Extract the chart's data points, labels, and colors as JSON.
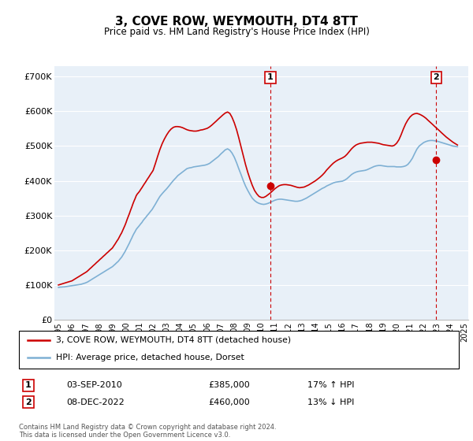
{
  "title": "3, COVE ROW, WEYMOUTH, DT4 8TT",
  "subtitle": "Price paid vs. HM Land Registry's House Price Index (HPI)",
  "ylim": [
    0,
    730000
  ],
  "yticks": [
    0,
    100000,
    200000,
    300000,
    400000,
    500000,
    600000,
    700000
  ],
  "ytick_labels": [
    "£0",
    "£100K",
    "£200K",
    "£300K",
    "£400K",
    "£500K",
    "£600K",
    "£700K"
  ],
  "background_color": "#e8f0f8",
  "grid_color": "#ffffff",
  "hpi_color": "#7eb0d4",
  "price_color": "#cc0000",
  "sale1_x": 2010.67,
  "sale1_y": 385000,
  "sale1_label": "1",
  "sale2_x": 2022.92,
  "sale2_y": 460000,
  "sale2_label": "2",
  "legend_line1": "3, COVE ROW, WEYMOUTH, DT4 8TT (detached house)",
  "legend_line2": "HPI: Average price, detached house, Dorset",
  "annotation1_date": "03-SEP-2010",
  "annotation1_price": "£385,000",
  "annotation1_hpi": "17% ↑ HPI",
  "annotation2_date": "08-DEC-2022",
  "annotation2_price": "£460,000",
  "annotation2_hpi": "13% ↓ HPI",
  "footer": "Contains HM Land Registry data © Crown copyright and database right 2024.\nThis data is licensed under the Open Government Licence v3.0.",
  "hpi_data_x": [
    1995.0,
    1995.08,
    1995.17,
    1995.25,
    1995.33,
    1995.42,
    1995.5,
    1995.58,
    1995.67,
    1995.75,
    1995.83,
    1995.92,
    1996.0,
    1996.08,
    1996.17,
    1996.25,
    1996.33,
    1996.42,
    1996.5,
    1996.58,
    1996.67,
    1996.75,
    1996.83,
    1996.92,
    1997.0,
    1997.08,
    1997.17,
    1997.25,
    1997.33,
    1997.42,
    1997.5,
    1997.58,
    1997.67,
    1997.75,
    1997.83,
    1997.92,
    1998.0,
    1998.08,
    1998.17,
    1998.25,
    1998.33,
    1998.42,
    1998.5,
    1998.58,
    1998.67,
    1998.75,
    1998.83,
    1998.92,
    1999.0,
    1999.08,
    1999.17,
    1999.25,
    1999.33,
    1999.42,
    1999.5,
    1999.58,
    1999.67,
    1999.75,
    1999.83,
    1999.92,
    2000.0,
    2000.08,
    2000.17,
    2000.25,
    2000.33,
    2000.42,
    2000.5,
    2000.58,
    2000.67,
    2000.75,
    2000.83,
    2000.92,
    2001.0,
    2001.08,
    2001.17,
    2001.25,
    2001.33,
    2001.42,
    2001.5,
    2001.58,
    2001.67,
    2001.75,
    2001.83,
    2001.92,
    2002.0,
    2002.17,
    2002.33,
    2002.5,
    2002.67,
    2002.83,
    2003.0,
    2003.17,
    2003.33,
    2003.5,
    2003.67,
    2003.83,
    2004.0,
    2004.17,
    2004.33,
    2004.5,
    2004.67,
    2004.83,
    2005.0,
    2005.17,
    2005.33,
    2005.5,
    2005.67,
    2005.83,
    2006.0,
    2006.17,
    2006.33,
    2006.5,
    2006.67,
    2006.83,
    2007.0,
    2007.17,
    2007.33,
    2007.5,
    2007.67,
    2007.83,
    2008.0,
    2008.17,
    2008.33,
    2008.5,
    2008.67,
    2008.83,
    2009.0,
    2009.17,
    2009.33,
    2009.5,
    2009.67,
    2009.83,
    2010.0,
    2010.17,
    2010.33,
    2010.5,
    2010.67,
    2010.83,
    2011.0,
    2011.17,
    2011.33,
    2011.5,
    2011.67,
    2011.83,
    2012.0,
    2012.17,
    2012.33,
    2012.5,
    2012.67,
    2012.83,
    2013.0,
    2013.17,
    2013.33,
    2013.5,
    2013.67,
    2013.83,
    2014.0,
    2014.17,
    2014.33,
    2014.5,
    2014.67,
    2014.83,
    2015.0,
    2015.17,
    2015.33,
    2015.5,
    2015.67,
    2015.83,
    2016.0,
    2016.17,
    2016.33,
    2016.5,
    2016.67,
    2016.83,
    2017.0,
    2017.17,
    2017.33,
    2017.5,
    2017.67,
    2017.83,
    2018.0,
    2018.17,
    2018.33,
    2018.5,
    2018.67,
    2018.83,
    2019.0,
    2019.17,
    2019.33,
    2019.5,
    2019.67,
    2019.83,
    2020.0,
    2020.17,
    2020.33,
    2020.5,
    2020.67,
    2020.83,
    2021.0,
    2021.17,
    2021.33,
    2021.5,
    2021.67,
    2021.83,
    2022.0,
    2022.17,
    2022.33,
    2022.5,
    2022.67,
    2022.83,
    2023.0,
    2023.17,
    2023.33,
    2023.5,
    2023.67,
    2023.83,
    2024.0,
    2024.17,
    2024.33,
    2024.5
  ],
  "hpi_data_y": [
    93000,
    93500,
    94000,
    94000,
    94500,
    94500,
    95000,
    95500,
    96000,
    96500,
    97000,
    97500,
    98000,
    98500,
    99000,
    99500,
    100000,
    100500,
    101000,
    101500,
    102000,
    103000,
    104000,
    105000,
    106000,
    107500,
    109000,
    111000,
    113000,
    115000,
    117000,
    119000,
    121000,
    123000,
    125000,
    127000,
    129000,
    131000,
    133000,
    135000,
    137000,
    139000,
    141000,
    143000,
    145000,
    147000,
    149000,
    151000,
    153000,
    156000,
    159000,
    162000,
    165000,
    168000,
    172000,
    176000,
    180000,
    185000,
    190000,
    196000,
    202000,
    208000,
    215000,
    221000,
    228000,
    235000,
    242000,
    248000,
    254000,
    260000,
    264000,
    268000,
    272000,
    276000,
    280000,
    285000,
    289000,
    293000,
    297000,
    301000,
    305000,
    309000,
    313000,
    317000,
    322000,
    333000,
    344000,
    355000,
    363000,
    370000,
    377000,
    385000,
    393000,
    401000,
    408000,
    415000,
    420000,
    425000,
    430000,
    435000,
    437000,
    438000,
    440000,
    441000,
    442000,
    443000,
    444000,
    445000,
    447000,
    450000,
    455000,
    460000,
    465000,
    470000,
    477000,
    483000,
    489000,
    492000,
    488000,
    480000,
    468000,
    452000,
    435000,
    418000,
    400000,
    385000,
    372000,
    360000,
    350000,
    343000,
    338000,
    335000,
    333000,
    332000,
    333000,
    335000,
    338000,
    341000,
    344000,
    346000,
    347000,
    347000,
    346000,
    345000,
    344000,
    343000,
    342000,
    341000,
    341000,
    342000,
    344000,
    347000,
    350000,
    354000,
    358000,
    362000,
    366000,
    370000,
    374000,
    378000,
    381000,
    385000,
    388000,
    391000,
    394000,
    396000,
    397000,
    398000,
    399000,
    402000,
    406000,
    412000,
    418000,
    422000,
    425000,
    427000,
    428000,
    429000,
    430000,
    432000,
    435000,
    438000,
    441000,
    443000,
    444000,
    444000,
    443000,
    442000,
    441000,
    441000,
    441000,
    441000,
    440000,
    440000,
    440000,
    441000,
    443000,
    447000,
    455000,
    465000,
    478000,
    491000,
    500000,
    505000,
    510000,
    513000,
    515000,
    516000,
    516000,
    515000,
    514000,
    512000,
    510000,
    508000,
    506000,
    504000,
    502000,
    500000,
    499000,
    498000
  ],
  "price_data_x": [
    1995.0,
    1995.08,
    1995.17,
    1995.25,
    1995.33,
    1995.42,
    1995.5,
    1995.58,
    1995.67,
    1995.75,
    1995.83,
    1995.92,
    1996.0,
    1996.08,
    1996.17,
    1996.25,
    1996.33,
    1996.42,
    1996.5,
    1996.58,
    1996.67,
    1996.75,
    1996.83,
    1996.92,
    1997.0,
    1997.08,
    1997.17,
    1997.25,
    1997.33,
    1997.42,
    1997.5,
    1997.58,
    1997.67,
    1997.75,
    1997.83,
    1997.92,
    1998.0,
    1998.08,
    1998.17,
    1998.25,
    1998.33,
    1998.42,
    1998.5,
    1998.58,
    1998.67,
    1998.75,
    1998.83,
    1998.92,
    1999.0,
    1999.08,
    1999.17,
    1999.25,
    1999.33,
    1999.42,
    1999.5,
    1999.58,
    1999.67,
    1999.75,
    1999.83,
    1999.92,
    2000.0,
    2000.08,
    2000.17,
    2000.25,
    2000.33,
    2000.42,
    2000.5,
    2000.58,
    2000.67,
    2000.75,
    2000.83,
    2000.92,
    2001.0,
    2001.08,
    2001.17,
    2001.25,
    2001.33,
    2001.42,
    2001.5,
    2001.58,
    2001.67,
    2001.75,
    2001.83,
    2001.92,
    2002.0,
    2002.17,
    2002.33,
    2002.5,
    2002.67,
    2002.83,
    2003.0,
    2003.17,
    2003.33,
    2003.5,
    2003.67,
    2003.83,
    2004.0,
    2004.17,
    2004.33,
    2004.5,
    2004.67,
    2004.83,
    2005.0,
    2005.17,
    2005.33,
    2005.5,
    2005.67,
    2005.83,
    2006.0,
    2006.17,
    2006.33,
    2006.5,
    2006.67,
    2006.83,
    2007.0,
    2007.17,
    2007.33,
    2007.5,
    2007.67,
    2007.83,
    2008.0,
    2008.17,
    2008.33,
    2008.5,
    2008.67,
    2008.83,
    2009.0,
    2009.17,
    2009.33,
    2009.5,
    2009.67,
    2009.83,
    2010.0,
    2010.17,
    2010.33,
    2010.5,
    2010.67,
    2010.83,
    2011.0,
    2011.17,
    2011.33,
    2011.5,
    2011.67,
    2011.83,
    2012.0,
    2012.17,
    2012.33,
    2012.5,
    2012.67,
    2012.83,
    2013.0,
    2013.17,
    2013.33,
    2013.5,
    2013.67,
    2013.83,
    2014.0,
    2014.17,
    2014.33,
    2014.5,
    2014.67,
    2014.83,
    2015.0,
    2015.17,
    2015.33,
    2015.5,
    2015.67,
    2015.83,
    2016.0,
    2016.17,
    2016.33,
    2016.5,
    2016.67,
    2016.83,
    2017.0,
    2017.17,
    2017.33,
    2017.5,
    2017.67,
    2017.83,
    2018.0,
    2018.17,
    2018.33,
    2018.5,
    2018.67,
    2018.83,
    2019.0,
    2019.17,
    2019.33,
    2019.5,
    2019.67,
    2019.83,
    2020.0,
    2020.17,
    2020.33,
    2020.5,
    2020.67,
    2020.83,
    2021.0,
    2021.17,
    2021.33,
    2021.5,
    2021.67,
    2021.83,
    2022.0,
    2022.17,
    2022.33,
    2022.5,
    2022.67,
    2022.83,
    2023.0,
    2023.17,
    2023.33,
    2023.5,
    2023.67,
    2023.83,
    2024.0,
    2024.17,
    2024.33,
    2024.5
  ],
  "price_data_y": [
    100000,
    101000,
    102000,
    103000,
    104000,
    105000,
    106000,
    107000,
    108000,
    109000,
    110000,
    111000,
    112000,
    114000,
    116000,
    118000,
    120000,
    122000,
    124000,
    126000,
    128000,
    130000,
    132000,
    134000,
    136000,
    138000,
    141000,
    144000,
    147000,
    150000,
    153000,
    156000,
    159000,
    162000,
    165000,
    168000,
    171000,
    174000,
    177000,
    180000,
    183000,
    186000,
    189000,
    192000,
    195000,
    198000,
    201000,
    204000,
    207000,
    212000,
    217000,
    222000,
    227000,
    232000,
    238000,
    244000,
    250000,
    257000,
    264000,
    272000,
    280000,
    289000,
    298000,
    306000,
    315000,
    324000,
    333000,
    341000,
    349000,
    357000,
    362000,
    366000,
    370000,
    375000,
    380000,
    385000,
    390000,
    395000,
    400000,
    405000,
    410000,
    415000,
    420000,
    425000,
    430000,
    450000,
    470000,
    490000,
    507000,
    520000,
    532000,
    542000,
    549000,
    554000,
    556000,
    556000,
    555000,
    553000,
    550000,
    547000,
    545000,
    544000,
    543000,
    543000,
    544000,
    546000,
    547000,
    549000,
    551000,
    555000,
    560000,
    566000,
    572000,
    578000,
    584000,
    590000,
    595000,
    598000,
    594000,
    583000,
    567000,
    547000,
    524000,
    498000,
    472000,
    447000,
    424000,
    404000,
    387000,
    372000,
    362000,
    355000,
    352000,
    352000,
    355000,
    360000,
    365000,
    371000,
    377000,
    382000,
    386000,
    388000,
    389000,
    389000,
    388000,
    387000,
    385000,
    383000,
    381000,
    380000,
    381000,
    382000,
    385000,
    388000,
    392000,
    396000,
    400000,
    405000,
    410000,
    416000,
    423000,
    431000,
    438000,
    445000,
    451000,
    456000,
    460000,
    463000,
    466000,
    470000,
    476000,
    484000,
    492000,
    498000,
    503000,
    506000,
    508000,
    509000,
    510000,
    511000,
    511000,
    511000,
    510000,
    509000,
    508000,
    506000,
    504000,
    503000,
    502000,
    501000,
    500000,
    502000,
    508000,
    518000,
    532000,
    549000,
    564000,
    575000,
    584000,
    590000,
    593000,
    594000,
    592000,
    589000,
    585000,
    580000,
    574000,
    568000,
    562000,
    556000,
    550000,
    544000,
    538000,
    532000,
    526000,
    521000,
    516000,
    511000,
    507000,
    503000
  ],
  "xlim_left": 1994.7,
  "xlim_right": 2025.3
}
